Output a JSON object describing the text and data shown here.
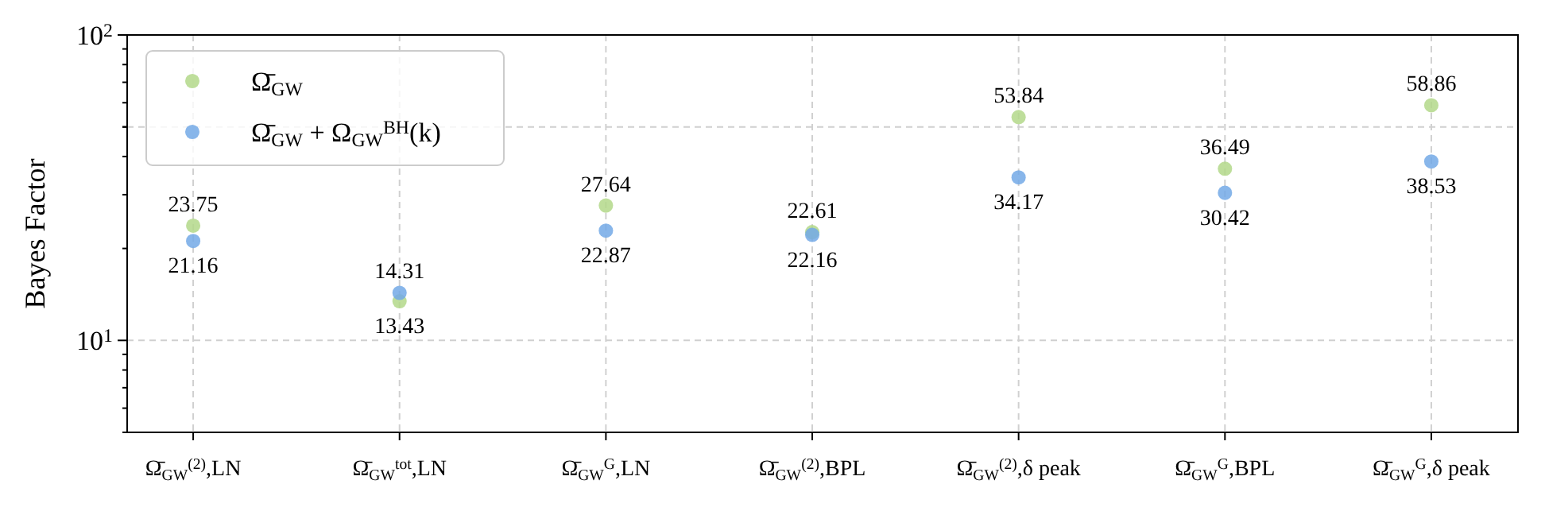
{
  "chart_data": {
    "type": "scatter",
    "ylabel": "Bayes Factor",
    "categories": [
      "Ω̄$_{GW}$$^{(2)}$,LN",
      "Ω̄$_{GW}$$^{tot}$,LN",
      "Ω̄$_{GW}$$^{G}$,LN",
      "Ω̄$_{GW}$$^{(2)}$,BPL",
      "Ω̄$_{GW}$$^{(2)}$,δ peak",
      "Ω̄$_{GW}$$^{G}$,BPL",
      "Ω̄$_{GW}$$^{G}$,δ peak"
    ],
    "series": [
      {
        "name": "Ω̄$_{GW}$",
        "color": "#b3d88a",
        "values": [
          23.75,
          13.43,
          27.64,
          22.61,
          53.84,
          36.49,
          58.86
        ]
      },
      {
        "name": "Ω̄$_{GW}$ + Ω$_{GW}$$^{BH}$(k)",
        "color": "#73a9e6",
        "values": [
          21.16,
          14.31,
          22.87,
          22.16,
          34.17,
          30.42,
          38.53
        ]
      }
    ],
    "log": "y",
    "ylim": [
      5,
      100
    ],
    "yticks": [
      {
        "value": 10,
        "label": "10$^{1}$"
      },
      {
        "value": 50,
        "label": null
      },
      {
        "value": 100,
        "label": "10$^{2}$"
      }
    ],
    "grid": true,
    "legend": "top left",
    "marker": "circle",
    "data_labels": true
  }
}
